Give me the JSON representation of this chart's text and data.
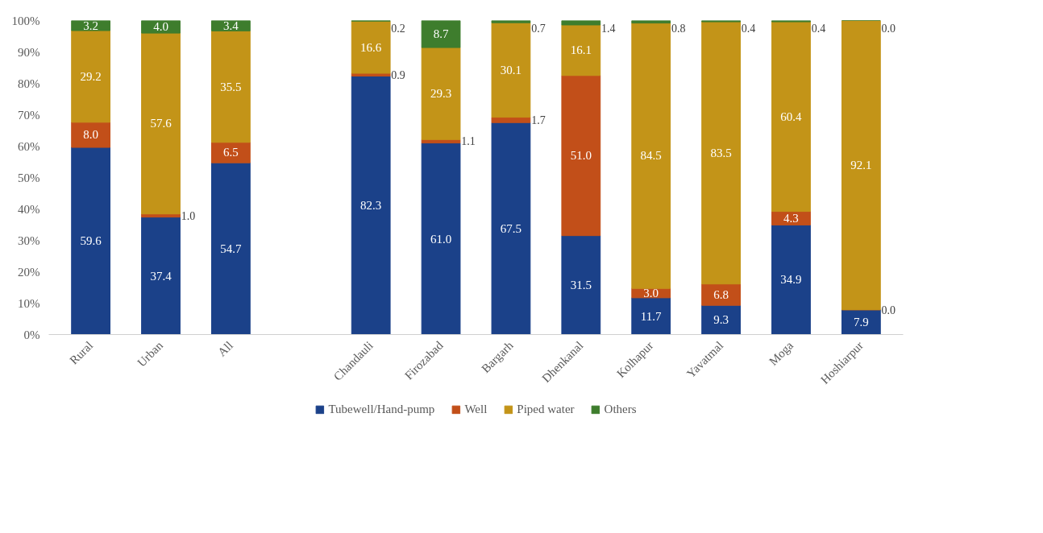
{
  "chart_data": {
    "type": "bar",
    "stacked": true,
    "categories": [
      "Rural",
      "Urban",
      "All",
      null,
      "Chandauli",
      "Firozabad",
      "Bargarh",
      "Dhenkanal",
      "Kolhapur",
      "Yavatmal",
      "Moga",
      "Hoshiarpur"
    ],
    "series": [
      {
        "name": "Tubewell/Hand-pump",
        "color": "#1b4189",
        "values": [
          59.6,
          37.4,
          54.7,
          null,
          82.3,
          61.0,
          67.5,
          31.5,
          11.7,
          9.3,
          34.9,
          7.9
        ],
        "value_labels": [
          "59.6",
          "37.4",
          "54.7",
          null,
          "82.3",
          "61.0",
          "67.5",
          "31.5",
          "11.7",
          "9.3",
          "34.9",
          "7.9"
        ]
      },
      {
        "name": "Well",
        "color": "#c24f19",
        "values": [
          8.0,
          1.0,
          6.5,
          null,
          0.9,
          1.1,
          1.7,
          51.0,
          3.0,
          6.8,
          4.3,
          0.0
        ],
        "value_labels": [
          "8.0",
          "1.0",
          "6.5",
          null,
          "0.9",
          "1.1",
          "1.7",
          "51.0",
          "3.0",
          "6.8",
          "4.3",
          "0.0"
        ]
      },
      {
        "name": "Piped water",
        "color": "#c39418",
        "values": [
          29.2,
          57.6,
          35.5,
          null,
          16.6,
          29.3,
          30.1,
          16.1,
          84.5,
          83.5,
          60.4,
          92.1
        ],
        "value_labels": [
          "29.2",
          "57.6",
          "35.5",
          null,
          "16.6",
          "29.3",
          "30.1",
          "16.1",
          "84.5",
          "83.5",
          "60.4",
          "92.1"
        ]
      },
      {
        "name": "Others",
        "color": "#3e7d2d",
        "values": [
          3.2,
          4.0,
          3.4,
          null,
          0.2,
          8.7,
          0.7,
          1.4,
          0.8,
          0.4,
          0.4,
          0.0
        ],
        "value_labels": [
          "3.2",
          "4.0",
          "3.4",
          null,
          "0.2",
          "8.7",
          "0.7",
          "1.4",
          "0.8",
          "0.4",
          "0.4",
          "0.0"
        ]
      }
    ],
    "ylim": [
      0,
      100
    ],
    "yticks": [
      {
        "value": 0,
        "label": "0%"
      },
      {
        "value": 10,
        "label": "10%"
      },
      {
        "value": 20,
        "label": "20%"
      },
      {
        "value": 30,
        "label": "30%"
      },
      {
        "value": 40,
        "label": "40%"
      },
      {
        "value": 50,
        "label": "50%"
      },
      {
        "value": 60,
        "label": "60%"
      },
      {
        "value": 70,
        "label": "70%"
      },
      {
        "value": 80,
        "label": "80%"
      },
      {
        "value": 90,
        "label": "90%"
      },
      {
        "value": 100,
        "label": "100%"
      }
    ],
    "grid": false,
    "legend": "bottom"
  }
}
